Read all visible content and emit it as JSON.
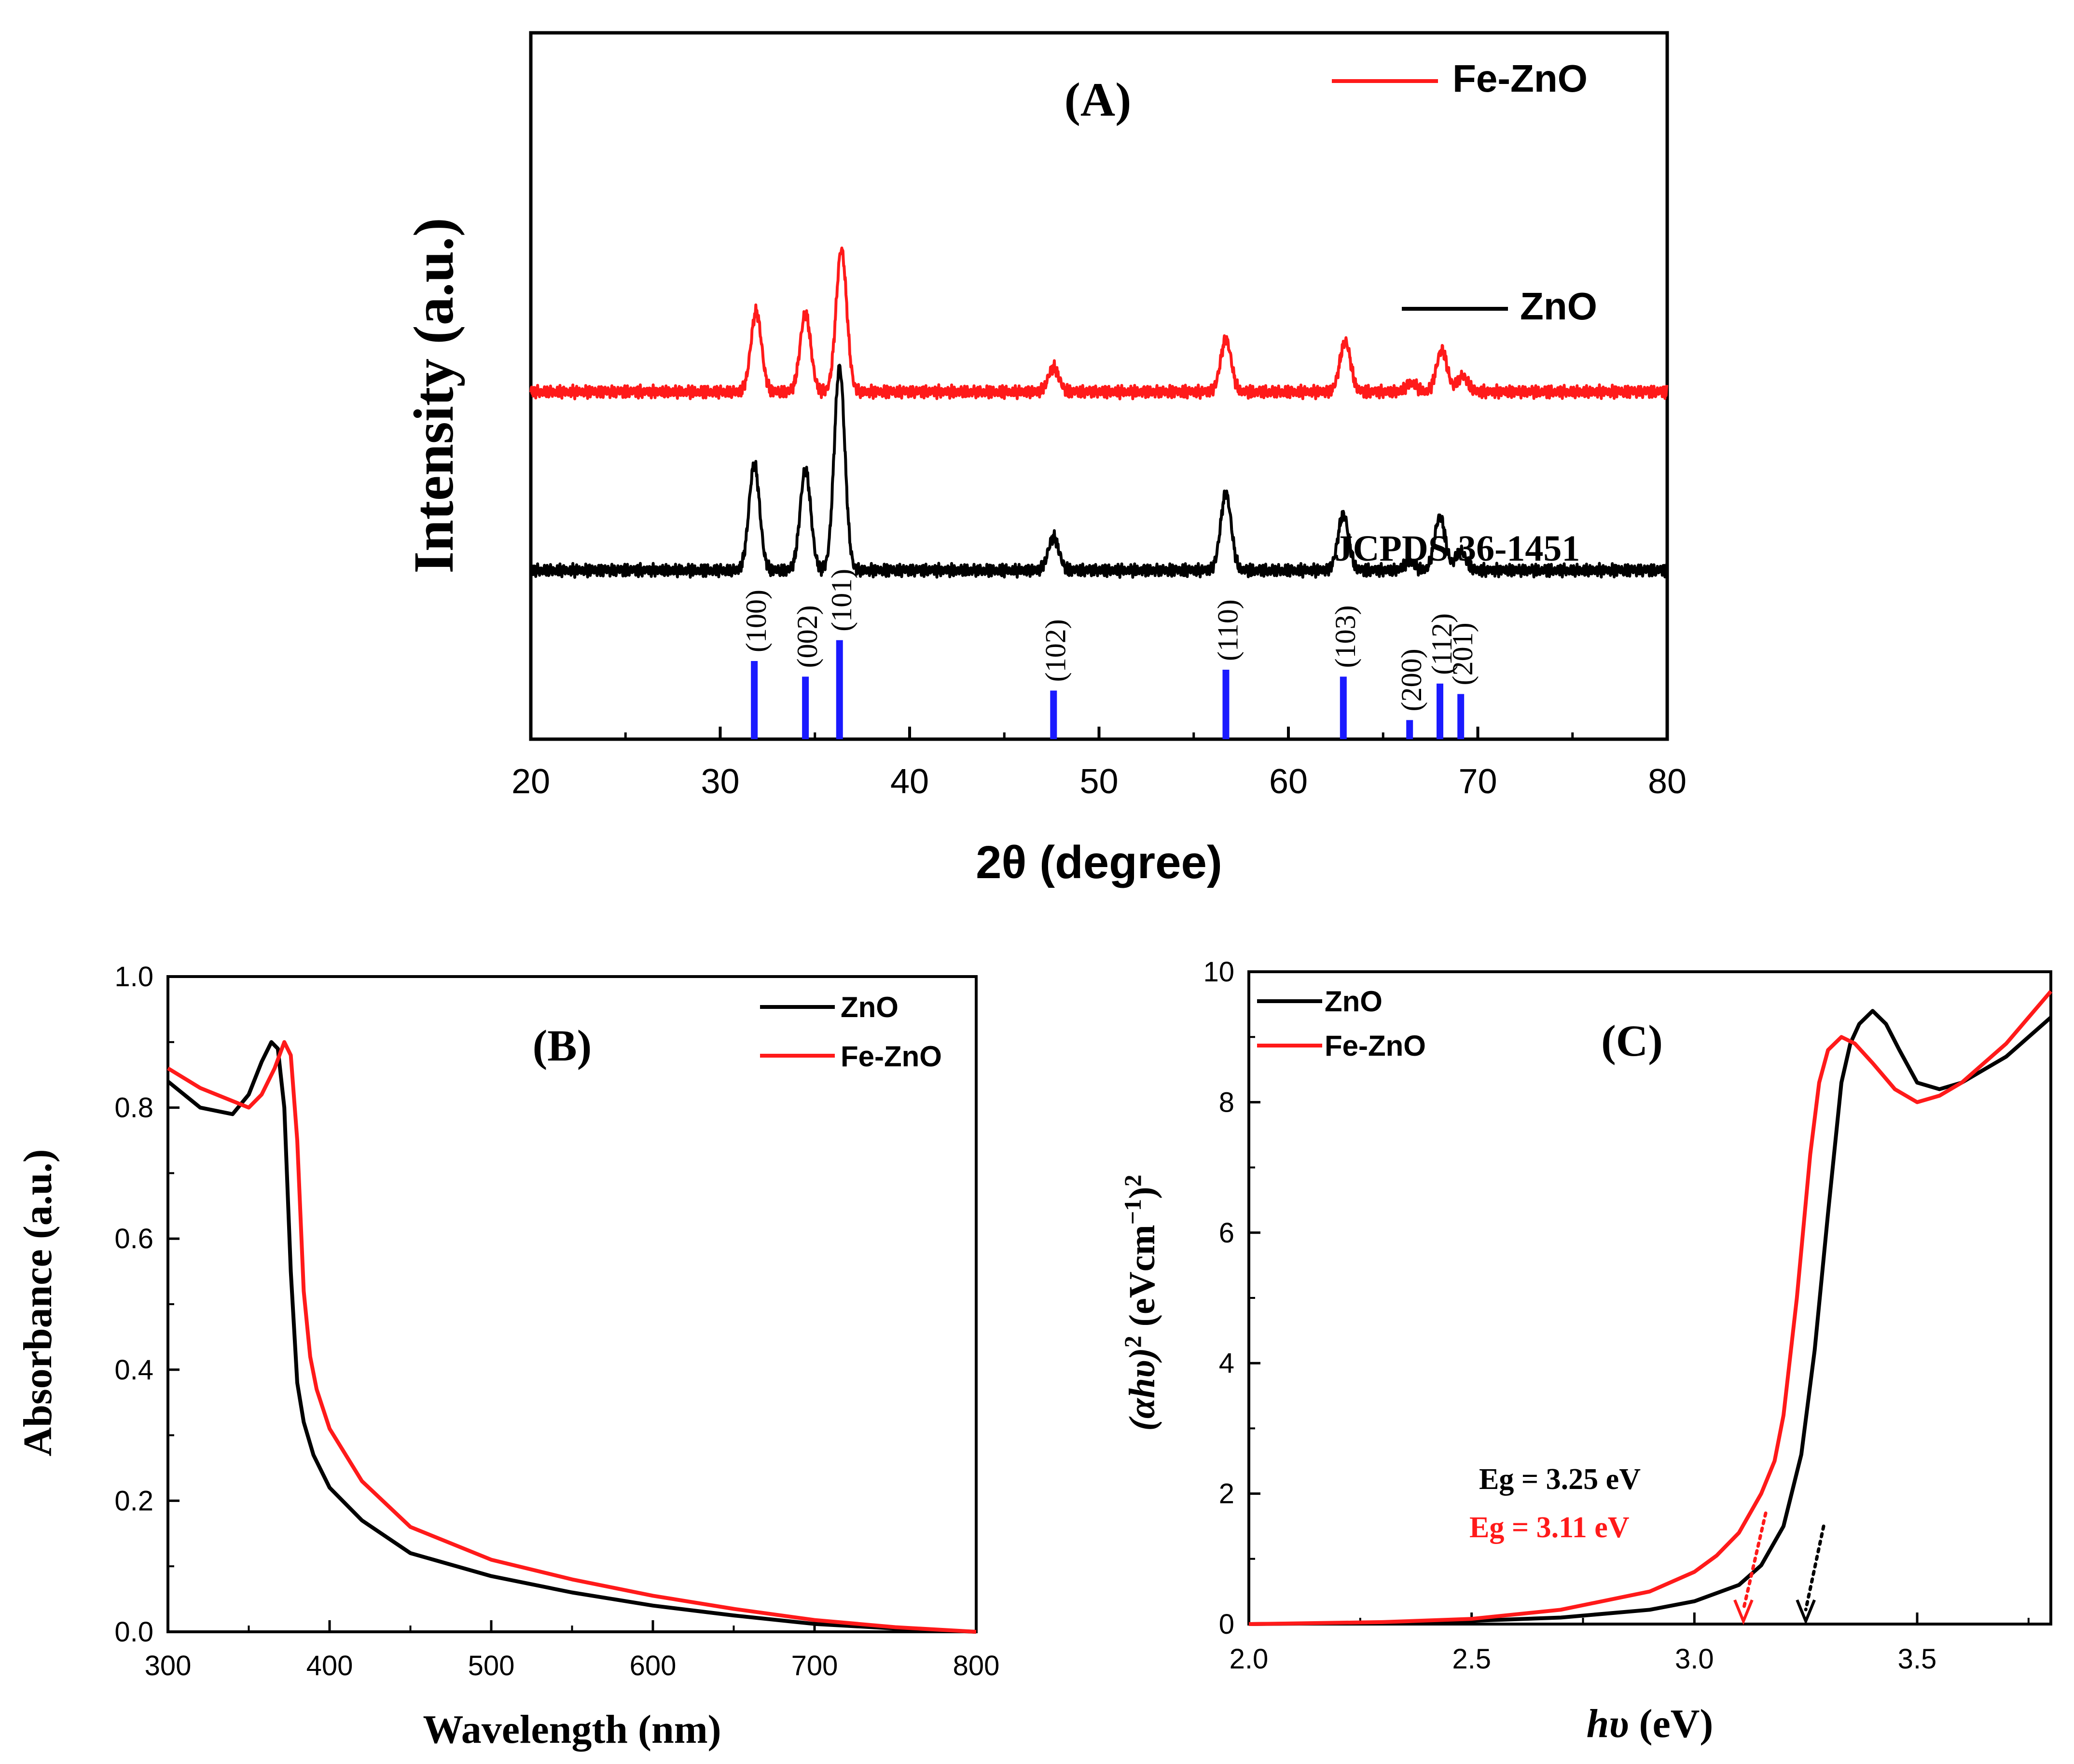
{
  "colors": {
    "zno": "#000000",
    "fe_zno": "#ff1a1a",
    "ref": "#1a1aff",
    "axis": "#000000"
  },
  "chart_data": [
    {
      "id": "A",
      "type": "line",
      "panel_label": "(A)",
      "xlabel": "2θ (degree)",
      "ylabel": "Intensity (a.u.)",
      "xlim": [
        20,
        80
      ],
      "xticks": [
        "20",
        "30",
        "40",
        "50",
        "60",
        "70",
        "80"
      ],
      "y_ticks_shown": false,
      "legend": [
        "Fe-ZnO",
        "ZnO"
      ],
      "reference_label": "JCPDS 36-1451",
      "series": [
        {
          "name": "Fe-ZnO",
          "color": "#ff1a1a",
          "offset": 690,
          "baseline": 30,
          "peaks": [
            {
              "x": 31.9,
              "h": 0.46
            },
            {
              "x": 34.5,
              "h": 0.45
            },
            {
              "x": 36.4,
              "h": 0.82
            },
            {
              "x": 47.6,
              "h": 0.14
            },
            {
              "x": 56.7,
              "h": 0.3
            },
            {
              "x": 63.0,
              "h": 0.29
            },
            {
              "x": 66.5,
              "h": 0.05
            },
            {
              "x": 68.1,
              "h": 0.24
            },
            {
              "x": 69.2,
              "h": 0.09
            }
          ]
        },
        {
          "name": "ZnO",
          "color": "#000000",
          "offset": 320,
          "baseline": 30,
          "peaks": [
            {
              "x": 31.8,
              "h": 0.61
            },
            {
              "x": 34.5,
              "h": 0.58
            },
            {
              "x": 36.3,
              "h": 1.17
            },
            {
              "x": 47.6,
              "h": 0.19
            },
            {
              "x": 56.7,
              "h": 0.44
            },
            {
              "x": 62.9,
              "h": 0.32
            },
            {
              "x": 66.4,
              "h": 0.05
            },
            {
              "x": 68.0,
              "h": 0.31
            },
            {
              "x": 69.1,
              "h": 0.11
            }
          ]
        }
      ],
      "reference_lines": [
        {
          "x": 31.8,
          "h": 0.45,
          "hkl": "(100)"
        },
        {
          "x": 34.5,
          "h": 0.36,
          "hkl": "(002)"
        },
        {
          "x": 36.3,
          "h": 0.57,
          "hkl": "(101)"
        },
        {
          "x": 47.6,
          "h": 0.28,
          "hkl": "(102)"
        },
        {
          "x": 56.7,
          "h": 0.4,
          "hkl": "(110)"
        },
        {
          "x": 62.9,
          "h": 0.36,
          "hkl": "(103)"
        },
        {
          "x": 66.4,
          "h": 0.11,
          "hkl": "(200)"
        },
        {
          "x": 68.0,
          "h": 0.32,
          "hkl": "(112)"
        },
        {
          "x": 69.1,
          "h": 0.26,
          "hkl": "(201)"
        }
      ]
    },
    {
      "id": "B",
      "type": "line",
      "panel_label": "(B)",
      "xlabel": "Wavelength (nm)",
      "ylabel": "Absorbance (a.u.)",
      "xlim": [
        300,
        800
      ],
      "ylim": [
        0,
        1.0
      ],
      "xticks": [
        "300",
        "400",
        "500",
        "600",
        "700",
        "800"
      ],
      "yticks": [
        "0.0",
        "0.2",
        "0.4",
        "0.6",
        "0.8",
        "1.0"
      ],
      "legend": [
        "ZnO",
        "Fe-ZnO"
      ],
      "series": [
        {
          "name": "ZnO",
          "color": "#000000",
          "x": [
            300,
            320,
            340,
            350,
            358,
            364,
            368,
            372,
            376,
            380,
            384,
            390,
            400,
            420,
            450,
            500,
            550,
            600,
            650,
            700,
            750,
            800
          ],
          "y": [
            0.84,
            0.8,
            0.79,
            0.82,
            0.87,
            0.9,
            0.89,
            0.8,
            0.55,
            0.38,
            0.32,
            0.27,
            0.22,
            0.17,
            0.12,
            0.085,
            0.06,
            0.04,
            0.025,
            0.012,
            0.005,
            0.0
          ]
        },
        {
          "name": "Fe-ZnO",
          "color": "#ff1a1a",
          "x": [
            300,
            320,
            340,
            350,
            358,
            366,
            372,
            376,
            380,
            384,
            388,
            392,
            400,
            420,
            450,
            500,
            550,
            600,
            650,
            700,
            750,
            800
          ],
          "y": [
            0.86,
            0.83,
            0.81,
            0.8,
            0.82,
            0.86,
            0.9,
            0.88,
            0.75,
            0.52,
            0.42,
            0.37,
            0.31,
            0.23,
            0.16,
            0.11,
            0.08,
            0.055,
            0.035,
            0.018,
            0.007,
            0.0
          ]
        }
      ]
    },
    {
      "id": "C",
      "type": "line",
      "panel_label": "(C)",
      "xlabel": "hυ (eV)",
      "ylabel": "(αhυ)² (eVcm⁻¹)²",
      "ylabel_parts": [
        "(αhυ)",
        "2",
        " (eVcm",
        "−1",
        ")",
        "2"
      ],
      "xlabel_parts": [
        "hυ",
        " (eV)"
      ],
      "xlim": [
        2.0,
        3.8
      ],
      "ylim": [
        0,
        10
      ],
      "xticks": [
        "2.0",
        "2.5",
        "3.0",
        "3.5"
      ],
      "yticks": [
        "0",
        "2",
        "4",
        "6",
        "8",
        "10"
      ],
      "legend": [
        "ZnO",
        "Fe-ZnO"
      ],
      "annotations": [
        {
          "text": "Eg = 3.25 eV",
          "color": "#000000"
        },
        {
          "text": "Eg = 3.11 eV",
          "color": "#ff1a1a"
        }
      ],
      "band_gaps": [
        {
          "name": "ZnO",
          "value": 3.25,
          "color": "#000000",
          "from": [
            3.29,
            1.5
          ]
        },
        {
          "name": "Fe-ZnO",
          "value": 3.11,
          "color": "#ff1a1a",
          "from": [
            3.16,
            1.7
          ]
        }
      ],
      "series": [
        {
          "name": "ZnO",
          "color": "#000000",
          "x": [
            2.0,
            2.3,
            2.5,
            2.7,
            2.9,
            3.0,
            3.1,
            3.15,
            3.2,
            3.24,
            3.27,
            3.3,
            3.33,
            3.35,
            3.37,
            3.4,
            3.43,
            3.46,
            3.5,
            3.55,
            3.6,
            3.7,
            3.8
          ],
          "y": [
            0.0,
            0.02,
            0.05,
            0.1,
            0.22,
            0.35,
            0.6,
            0.9,
            1.5,
            2.6,
            4.2,
            6.3,
            8.3,
            8.9,
            9.2,
            9.4,
            9.2,
            8.8,
            8.3,
            8.2,
            8.3,
            8.7,
            9.3
          ]
        },
        {
          "name": "Fe-ZnO",
          "color": "#ff1a1a",
          "x": [
            2.0,
            2.3,
            2.5,
            2.7,
            2.9,
            3.0,
            3.05,
            3.1,
            3.15,
            3.18,
            3.2,
            3.23,
            3.26,
            3.28,
            3.3,
            3.33,
            3.36,
            3.4,
            3.45,
            3.5,
            3.55,
            3.6,
            3.7,
            3.8
          ],
          "y": [
            0.0,
            0.03,
            0.08,
            0.22,
            0.5,
            0.8,
            1.05,
            1.4,
            2.0,
            2.5,
            3.2,
            5.0,
            7.2,
            8.3,
            8.8,
            9.0,
            8.9,
            8.6,
            8.2,
            8.0,
            8.1,
            8.3,
            8.9,
            9.7
          ]
        }
      ]
    }
  ]
}
